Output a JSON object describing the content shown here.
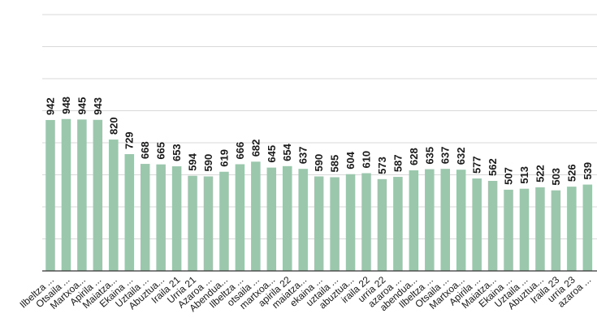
{
  "colors": {
    "bar": "#9bc7ad",
    "grid": "#d9d9d9",
    "baseline": "#333333",
    "text": "#1a1a1a"
  },
  "chart_data": {
    "type": "bar",
    "categories": [
      "Ilbeltza ...",
      "Otsaila ...",
      "Martxoa...",
      "Apirila ...",
      "Maiatza...",
      "Ekaina ...",
      "Uztaila ...",
      "Abuztua...",
      "Iraila 21",
      "Urria 21",
      "Azaroa ...",
      "Abendua...",
      "Ilbeltza ...",
      "otsaila ...",
      "martxoa...",
      "apirila 22",
      "maiatza...",
      "ekaina ...",
      "uztaila ...",
      "abuztua...",
      "iraila 22",
      "urria 22",
      "azaroa ...",
      "abendua...",
      "Ilbeltza ...",
      "Otsaila ...",
      "Martxoa...",
      "Apirila ...",
      "Maiatza...",
      "Ekaina ...",
      "Uztaila ...",
      "Abuztua...",
      "Iraila 23",
      "urria 23",
      "azaroa ..."
    ],
    "values": [
      942,
      948,
      945,
      943,
      820,
      729,
      668,
      665,
      653,
      594,
      590,
      619,
      666,
      682,
      645,
      654,
      637,
      590,
      585,
      604,
      610,
      573,
      587,
      628,
      635,
      637,
      632,
      577,
      562,
      507,
      513,
      522,
      503,
      526,
      539
    ],
    "ylim": [
      0,
      1600
    ],
    "grid": true,
    "legend": "none",
    "title": "",
    "xlabel": "",
    "ylabel": ""
  }
}
